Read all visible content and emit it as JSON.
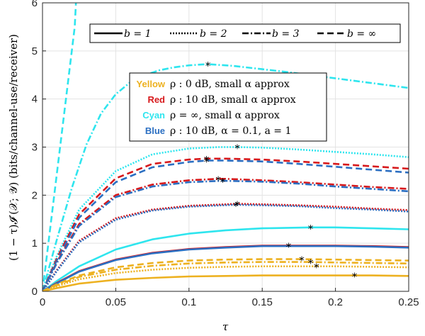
{
  "chart_data": {
    "type": "line",
    "xlabel": "τ",
    "ylabel": "(1 − τ)𝓘′(𝒳; 𝒴) (bits/channel-use/receiver)",
    "xlim": [
      0,
      0.25
    ],
    "ylim": [
      0,
      6
    ],
    "x_ticks": [
      "0",
      "0.05",
      "0.1",
      "0.15",
      "0.2",
      "0.25"
    ],
    "y_ticks": [
      "0",
      "1",
      "2",
      "3",
      "4",
      "5",
      "6"
    ],
    "grid": true,
    "legend_styles": {
      "position": "top",
      "entries": [
        {
          "label": "b = 1",
          "dash": "solid"
        },
        {
          "label": "b = 2",
          "dash": "dotted"
        },
        {
          "label": "b = 3",
          "dash": "dashdot"
        },
        {
          "label": "b = ∞",
          "dash": "dashed"
        }
      ]
    },
    "legend_colors": {
      "position": "center",
      "entries": [
        {
          "name": "Yellow",
          "color": "#EDB120",
          "text": "ρ : 0 dB, small α approx"
        },
        {
          "name": "Red",
          "color": "#D7191C",
          "text": "ρ : 10 dB, small α approx"
        },
        {
          "name": "Cyan",
          "color": "#2EE5EE",
          "text": "ρ = ∞, small α approx"
        },
        {
          "name": "Blue",
          "color": "#2B6FC2",
          "text": "ρ : 10 dB, α = 0.1, a = 1"
        }
      ]
    },
    "series": [
      {
        "color": "#2EE5EE",
        "dash": "dashed",
        "x": [
          0,
          0.004,
          0.01,
          0.016,
          0.022,
          0.0228
        ],
        "y": [
          0,
          1.0,
          2.5,
          4.0,
          5.5,
          6.0
        ]
      },
      {
        "color": "#2EE5EE",
        "dash": "dashdot",
        "x": [
          0,
          0.01,
          0.02,
          0.03,
          0.04,
          0.05,
          0.06,
          0.07,
          0.08,
          0.09,
          0.1,
          0.11,
          0.115,
          0.13,
          0.15,
          0.17,
          0.19,
          0.21,
          0.23,
          0.25
        ],
        "y": [
          0,
          1.1,
          2.15,
          3.05,
          3.7,
          4.1,
          4.35,
          4.5,
          4.6,
          4.66,
          4.7,
          4.72,
          4.72,
          4.69,
          4.62,
          4.55,
          4.47,
          4.39,
          4.31,
          4.23
        ],
        "peak": [
          0.113,
          4.72
        ]
      },
      {
        "color": "#2EE5EE",
        "dash": "dotted",
        "x": [
          0,
          0.01,
          0.025,
          0.05,
          0.075,
          0.1,
          0.12,
          0.133,
          0.15,
          0.175,
          0.2,
          0.225,
          0.25
        ],
        "y": [
          0,
          0.75,
          1.7,
          2.5,
          2.85,
          2.97,
          3.0,
          3.0,
          2.99,
          2.95,
          2.9,
          2.85,
          2.79
        ],
        "peak": [
          0.133,
          3.0
        ]
      },
      {
        "color": "#D7191C",
        "dash": "dashed",
        "x": [
          0,
          0.01,
          0.025,
          0.05,
          0.075,
          0.1,
          0.112,
          0.125,
          0.15,
          0.175,
          0.2,
          0.225,
          0.25
        ],
        "y": [
          0,
          0.7,
          1.6,
          2.35,
          2.65,
          2.74,
          2.76,
          2.76,
          2.74,
          2.7,
          2.65,
          2.6,
          2.55
        ],
        "peak": [
          0.112,
          2.76
        ]
      },
      {
        "color": "#2B6FC2",
        "dash": "dashed",
        "x": [
          0,
          0.01,
          0.025,
          0.05,
          0.075,
          0.1,
          0.112,
          0.125,
          0.15,
          0.175,
          0.2,
          0.225,
          0.25
        ],
        "y": [
          0,
          0.66,
          1.53,
          2.27,
          2.58,
          2.69,
          2.72,
          2.72,
          2.7,
          2.65,
          2.59,
          2.53,
          2.47
        ],
        "peak": [
          0.112,
          2.72
        ]
      },
      {
        "color": "#D7191C",
        "dash": "dashdot",
        "x": [
          0,
          0.01,
          0.025,
          0.05,
          0.075,
          0.1,
          0.12,
          0.125,
          0.15,
          0.175,
          0.2,
          0.225,
          0.25
        ],
        "y": [
          0,
          0.62,
          1.4,
          2.0,
          2.22,
          2.31,
          2.34,
          2.34,
          2.31,
          2.27,
          2.22,
          2.17,
          2.13
        ],
        "peak": [
          0.12,
          2.34
        ]
      },
      {
        "color": "#2B6FC2",
        "dash": "dashdot",
        "x": [
          0,
          0.01,
          0.025,
          0.05,
          0.075,
          0.1,
          0.123,
          0.15,
          0.175,
          0.2,
          0.225,
          0.25
        ],
        "y": [
          0,
          0.6,
          1.36,
          1.96,
          2.18,
          2.27,
          2.3,
          2.28,
          2.24,
          2.18,
          2.13,
          2.08
        ],
        "peak": [
          0.123,
          2.3
        ]
      },
      {
        "color": "#D7191C",
        "dash": "dotted",
        "x": [
          0,
          0.01,
          0.025,
          0.05,
          0.075,
          0.1,
          0.125,
          0.133,
          0.15,
          0.175,
          0.2,
          0.225,
          0.25
        ],
        "y": [
          0,
          0.45,
          1.05,
          1.52,
          1.7,
          1.78,
          1.81,
          1.82,
          1.81,
          1.79,
          1.76,
          1.72,
          1.69
        ],
        "peak": [
          0.133,
          1.82
        ]
      },
      {
        "color": "#2B6FC2",
        "dash": "dotted",
        "x": [
          0,
          0.01,
          0.025,
          0.05,
          0.075,
          0.1,
          0.132,
          0.15,
          0.175,
          0.2,
          0.225,
          0.25
        ],
        "y": [
          0,
          0.43,
          1.02,
          1.49,
          1.68,
          1.76,
          1.8,
          1.79,
          1.77,
          1.73,
          1.7,
          1.66
        ],
        "peak": [
          0.132,
          1.8
        ]
      },
      {
        "color": "#2EE5EE",
        "dash": "solid",
        "x": [
          0,
          0.01,
          0.025,
          0.05,
          0.075,
          0.1,
          0.125,
          0.15,
          0.183,
          0.2,
          0.225,
          0.25
        ],
        "y": [
          0,
          0.22,
          0.52,
          0.87,
          1.08,
          1.2,
          1.27,
          1.31,
          1.33,
          1.33,
          1.31,
          1.29
        ],
        "peak": [
          0.183,
          1.33
        ]
      },
      {
        "color": "#D7191C",
        "dash": "solid",
        "x": [
          0,
          0.01,
          0.025,
          0.05,
          0.075,
          0.1,
          0.125,
          0.15,
          0.168,
          0.2,
          0.225,
          0.25
        ],
        "y": [
          0,
          0.18,
          0.42,
          0.66,
          0.8,
          0.88,
          0.92,
          0.95,
          0.95,
          0.95,
          0.94,
          0.92
        ],
        "peak": [
          0.168,
          0.95
        ]
      },
      {
        "color": "#2B6FC2",
        "dash": "solid",
        "x": [
          0,
          0.01,
          0.025,
          0.05,
          0.075,
          0.1,
          0.125,
          0.15,
          0.168,
          0.2,
          0.225,
          0.25
        ],
        "y": [
          0,
          0.17,
          0.41,
          0.65,
          0.79,
          0.87,
          0.91,
          0.94,
          0.94,
          0.94,
          0.93,
          0.91
        ]
      },
      {
        "color": "#EDB120",
        "dash": "dashed",
        "x": [
          0,
          0.01,
          0.025,
          0.05,
          0.075,
          0.1,
          0.125,
          0.15,
          0.177,
          0.2,
          0.225,
          0.25
        ],
        "y": [
          0,
          0.15,
          0.33,
          0.5,
          0.59,
          0.64,
          0.66,
          0.67,
          0.67,
          0.66,
          0.65,
          0.64
        ],
        "peak": [
          0.177,
          0.67
        ]
      },
      {
        "color": "#EDB120",
        "dash": "dashdot",
        "x": [
          0,
          0.01,
          0.025,
          0.05,
          0.075,
          0.1,
          0.125,
          0.15,
          0.183,
          0.2,
          0.225,
          0.25
        ],
        "y": [
          0,
          0.13,
          0.3,
          0.45,
          0.53,
          0.58,
          0.6,
          0.61,
          0.61,
          0.6,
          0.59,
          0.58
        ],
        "peak": [
          0.183,
          0.61
        ]
      },
      {
        "color": "#EDB120",
        "dash": "dotted",
        "x": [
          0,
          0.01,
          0.025,
          0.05,
          0.075,
          0.1,
          0.125,
          0.15,
          0.187,
          0.2,
          0.225,
          0.25
        ],
        "y": [
          0,
          0.11,
          0.25,
          0.38,
          0.45,
          0.49,
          0.51,
          0.52,
          0.52,
          0.52,
          0.51,
          0.5
        ],
        "peak": [
          0.187,
          0.52
        ]
      },
      {
        "color": "#EDB120",
        "dash": "solid",
        "x": [
          0,
          0.01,
          0.025,
          0.05,
          0.075,
          0.1,
          0.125,
          0.15,
          0.175,
          0.213,
          0.225,
          0.25
        ],
        "y": [
          0,
          0.07,
          0.16,
          0.24,
          0.28,
          0.31,
          0.32,
          0.33,
          0.33,
          0.33,
          0.33,
          0.32
        ],
        "peak": [
          0.213,
          0.33
        ]
      }
    ]
  }
}
